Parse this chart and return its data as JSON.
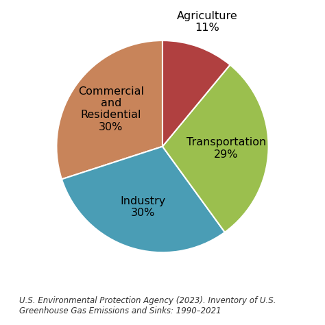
{
  "slices": [
    {
      "label": "Commercial\nand\nResidential\n30%",
      "value": 30,
      "color": "#C8845A",
      "label_r": 0.6,
      "outside": false
    },
    {
      "label": "Industry\n30%",
      "value": 30,
      "color": "#4A9DB5",
      "label_r": 0.6,
      "outside": false
    },
    {
      "label": "Transportation\n29%",
      "value": 29,
      "color": "#9BBF4E",
      "label_r": 0.6,
      "outside": false
    },
    {
      "label": "Agriculture\n11%",
      "value": 11,
      "color": "#B04040",
      "label_r": 1.25,
      "outside": true
    }
  ],
  "start_angle": 90,
  "background_color": "#ffffff",
  "citation": "U.S. Environmental Protection Agency (2023). Inventory of U.S.\nGreenhouse Gas Emissions and Sinks: 1990–2021",
  "citation_fontsize": 8.5,
  "label_fontsize": 11.5,
  "figsize": [
    4.74,
    4.74
  ],
  "dpi": 100
}
